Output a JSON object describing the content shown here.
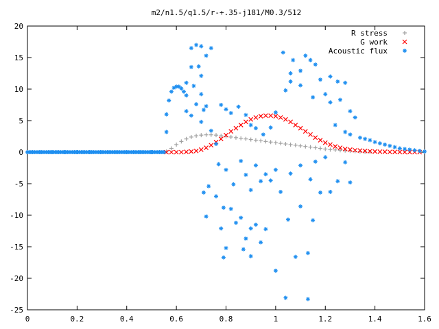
{
  "chart_data": {
    "type": "scatter",
    "title": "m2/n1.5/q1.5/r-+.35-j181/M0.3/512",
    "xlabel": "",
    "ylabel": "",
    "xlim": [
      0,
      1.6
    ],
    "ylim": [
      -25,
      20
    ],
    "x_ticks": [
      "0",
      "0.2",
      "0.4",
      "0.6",
      "0.8",
      "1",
      "1.2",
      "1.4",
      "1.6"
    ],
    "y_ticks": [
      "20",
      "15",
      "10",
      "5",
      "0",
      "-5",
      "-10",
      "-15",
      "-20",
      "-25"
    ],
    "grid": false,
    "legend_position": "top-right",
    "series": [
      {
        "name": "R stress",
        "marker": "+",
        "color": "#a0a0a0",
        "points": [
          [
            0.56,
            0.1
          ],
          [
            0.58,
            0.6
          ],
          [
            0.6,
            1.2
          ],
          [
            0.62,
            1.7
          ],
          [
            0.64,
            2.1
          ],
          [
            0.66,
            2.4
          ],
          [
            0.68,
            2.6
          ],
          [
            0.7,
            2.7
          ],
          [
            0.72,
            2.75
          ],
          [
            0.74,
            2.75
          ],
          [
            0.76,
            2.7
          ],
          [
            0.78,
            2.6
          ],
          [
            0.8,
            2.5
          ],
          [
            0.82,
            2.4
          ],
          [
            0.84,
            2.3
          ],
          [
            0.86,
            2.2
          ],
          [
            0.88,
            2.1
          ],
          [
            0.9,
            2.0
          ],
          [
            0.92,
            1.9
          ],
          [
            0.94,
            1.8
          ],
          [
            0.96,
            1.7
          ],
          [
            0.98,
            1.6
          ],
          [
            1.0,
            1.5
          ],
          [
            1.02,
            1.4
          ],
          [
            1.04,
            1.3
          ],
          [
            1.06,
            1.2
          ],
          [
            1.08,
            1.1
          ],
          [
            1.1,
            1.0
          ],
          [
            1.12,
            0.9
          ],
          [
            1.14,
            0.8
          ],
          [
            1.16,
            0.7
          ],
          [
            1.18,
            0.6
          ],
          [
            1.2,
            0.5
          ],
          [
            1.22,
            0.4
          ],
          [
            1.24,
            0.35
          ],
          [
            1.26,
            0.3
          ],
          [
            1.28,
            0.25
          ],
          [
            1.3,
            0.2
          ],
          [
            1.32,
            0.15
          ],
          [
            1.34,
            0.1
          ],
          [
            1.36,
            0.05
          ],
          [
            1.38,
            0.02
          ]
        ]
      },
      {
        "name": "G work",
        "marker": "x",
        "color": "#ff0000",
        "points": [
          [
            0.56,
            0.0
          ],
          [
            0.58,
            0.0
          ],
          [
            0.6,
            0.0
          ],
          [
            0.62,
            0.0
          ],
          [
            0.64,
            0.05
          ],
          [
            0.66,
            0.1
          ],
          [
            0.68,
            0.2
          ],
          [
            0.7,
            0.4
          ],
          [
            0.72,
            0.7
          ],
          [
            0.74,
            1.1
          ],
          [
            0.76,
            1.6
          ],
          [
            0.78,
            2.1
          ],
          [
            0.8,
            2.7
          ],
          [
            0.82,
            3.3
          ],
          [
            0.84,
            3.8
          ],
          [
            0.86,
            4.3
          ],
          [
            0.88,
            4.8
          ],
          [
            0.9,
            5.2
          ],
          [
            0.92,
            5.5
          ],
          [
            0.94,
            5.7
          ],
          [
            0.96,
            5.8
          ],
          [
            0.98,
            5.8
          ],
          [
            1.0,
            5.7
          ],
          [
            1.02,
            5.5
          ],
          [
            1.04,
            5.2
          ],
          [
            1.06,
            4.8
          ],
          [
            1.08,
            4.3
          ],
          [
            1.1,
            3.8
          ],
          [
            1.12,
            3.3
          ],
          [
            1.14,
            2.8
          ],
          [
            1.16,
            2.3
          ],
          [
            1.18,
            1.9
          ],
          [
            1.2,
            1.5
          ],
          [
            1.22,
            1.2
          ],
          [
            1.24,
            0.9
          ],
          [
            1.26,
            0.7
          ],
          [
            1.28,
            0.5
          ],
          [
            1.3,
            0.4
          ],
          [
            1.32,
            0.3
          ],
          [
            1.34,
            0.25
          ],
          [
            1.36,
            0.2
          ],
          [
            1.38,
            0.15
          ],
          [
            1.4,
            0.1
          ],
          [
            1.42,
            0.08
          ],
          [
            1.44,
            0.06
          ],
          [
            1.46,
            0.04
          ],
          [
            1.48,
            0.03
          ],
          [
            1.5,
            0.02
          ],
          [
            1.52,
            0.01
          ],
          [
            1.54,
            0.01
          ],
          [
            1.56,
            0.0
          ],
          [
            1.58,
            0.0
          ]
        ]
      },
      {
        "name": "Acoustic flux",
        "marker": "*",
        "color": "#1f8ff0",
        "points": [
          [
            0.0,
            0.0
          ],
          [
            0.05,
            0.0
          ],
          [
            0.1,
            0.0
          ],
          [
            0.15,
            0.0
          ],
          [
            0.2,
            0.0
          ],
          [
            0.25,
            0.0
          ],
          [
            0.3,
            0.0
          ],
          [
            0.35,
            0.0
          ],
          [
            0.4,
            0.0
          ],
          [
            0.45,
            0.0
          ],
          [
            0.5,
            0.0
          ],
          [
            0.55,
            0.0
          ],
          [
            0.56,
            3.2
          ],
          [
            0.56,
            6.0
          ],
          [
            0.57,
            8.2
          ],
          [
            0.58,
            9.6
          ],
          [
            0.59,
            10.2
          ],
          [
            0.6,
            10.4
          ],
          [
            0.61,
            10.4
          ],
          [
            0.62,
            10.1
          ],
          [
            0.63,
            9.6
          ],
          [
            0.64,
            9.0
          ],
          [
            0.66,
            16.5
          ],
          [
            0.68,
            17.0
          ],
          [
            0.7,
            16.8
          ],
          [
            0.74,
            16.5
          ],
          [
            0.66,
            13.5
          ],
          [
            0.69,
            13.6
          ],
          [
            0.72,
            15.3
          ],
          [
            0.7,
            12.1
          ],
          [
            0.64,
            11.0
          ],
          [
            0.67,
            10.5
          ],
          [
            0.7,
            9.2
          ],
          [
            0.68,
            7.6
          ],
          [
            0.72,
            7.3
          ],
          [
            0.71,
            6.7
          ],
          [
            0.64,
            6.5
          ],
          [
            0.66,
            5.8
          ],
          [
            0.7,
            4.8
          ],
          [
            0.74,
            3.4
          ],
          [
            0.76,
            1.3
          ],
          [
            0.78,
            7.5
          ],
          [
            0.8,
            6.8
          ],
          [
            0.82,
            6.2
          ],
          [
            0.85,
            7.2
          ],
          [
            0.88,
            5.9
          ],
          [
            0.9,
            4.3
          ],
          [
            0.92,
            3.8
          ],
          [
            0.95,
            2.8
          ],
          [
            0.98,
            3.9
          ],
          [
            1.0,
            6.3
          ],
          [
            0.77,
            -1.9
          ],
          [
            0.8,
            -2.8
          ],
          [
            0.83,
            -5.1
          ],
          [
            0.86,
            -1.4
          ],
          [
            0.88,
            -3.6
          ],
          [
            0.9,
            -6.0
          ],
          [
            0.92,
            -2.1
          ],
          [
            0.94,
            -4.6
          ],
          [
            0.96,
            -3.5
          ],
          [
            0.98,
            -4.5
          ],
          [
            1.0,
            -2.8
          ],
          [
            1.02,
            -6.3
          ],
          [
            0.73,
            -5.4
          ],
          [
            0.71,
            -6.4
          ],
          [
            0.76,
            -7.0
          ],
          [
            0.79,
            -8.8
          ],
          [
            0.72,
            -10.2
          ],
          [
            0.78,
            -12.1
          ],
          [
            0.82,
            -9.0
          ],
          [
            0.84,
            -11.2
          ],
          [
            0.86,
            -10.4
          ],
          [
            0.88,
            -13.7
          ],
          [
            0.9,
            -12.1
          ],
          [
            0.92,
            -11.5
          ],
          [
            0.94,
            -14.3
          ],
          [
            0.96,
            -12.2
          ],
          [
            0.8,
            -15.2
          ],
          [
            0.79,
            -16.7
          ],
          [
            0.87,
            -15.4
          ],
          [
            0.9,
            -16.5
          ],
          [
            1.0,
            -18.8
          ],
          [
            1.04,
            -23.1
          ],
          [
            1.13,
            -23.3
          ],
          [
            1.08,
            -16.6
          ],
          [
            1.13,
            -16.0
          ],
          [
            1.05,
            -10.7
          ],
          [
            1.1,
            -8.6
          ],
          [
            1.15,
            -10.8
          ],
          [
            1.18,
            -6.4
          ],
          [
            1.22,
            -6.3
          ],
          [
            1.25,
            -4.6
          ],
          [
            1.28,
            -1.6
          ],
          [
            1.3,
            -4.8
          ],
          [
            1.06,
            -3.4
          ],
          [
            1.1,
            -2.1
          ],
          [
            1.14,
            -4.3
          ],
          [
            1.16,
            -1.5
          ],
          [
            1.2,
            -0.8
          ],
          [
            1.03,
            15.8
          ],
          [
            1.07,
            14.6
          ],
          [
            1.12,
            15.3
          ],
          [
            1.14,
            14.6
          ],
          [
            1.06,
            12.5
          ],
          [
            1.1,
            12.9
          ],
          [
            1.16,
            13.9
          ],
          [
            1.18,
            11.5
          ],
          [
            1.22,
            12.0
          ],
          [
            1.25,
            11.2
          ],
          [
            1.28,
            11.0
          ],
          [
            1.06,
            11.2
          ],
          [
            1.1,
            10.6
          ],
          [
            1.04,
            9.8
          ],
          [
            1.15,
            8.7
          ],
          [
            1.2,
            9.2
          ],
          [
            1.22,
            7.9
          ],
          [
            1.26,
            8.3
          ],
          [
            1.3,
            6.5
          ],
          [
            1.32,
            5.5
          ],
          [
            1.24,
            4.3
          ],
          [
            1.28,
            3.2
          ],
          [
            1.3,
            2.8
          ],
          [
            1.34,
            2.3
          ],
          [
            1.36,
            2.1
          ],
          [
            1.38,
            1.9
          ],
          [
            1.4,
            1.6
          ],
          [
            1.42,
            1.4
          ],
          [
            1.44,
            1.2
          ],
          [
            1.46,
            1.0
          ],
          [
            1.48,
            0.8
          ],
          [
            1.5,
            0.6
          ],
          [
            1.52,
            0.5
          ],
          [
            1.54,
            0.4
          ],
          [
            1.56,
            0.3
          ],
          [
            1.58,
            0.2
          ],
          [
            1.6,
            0.1
          ]
        ]
      }
    ]
  }
}
